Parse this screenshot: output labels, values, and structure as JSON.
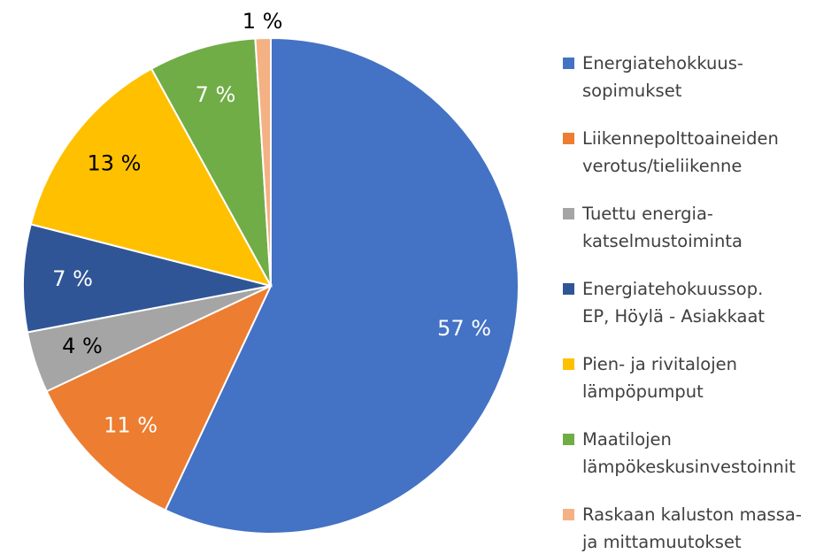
{
  "chart_data": {
    "type": "pie",
    "categories": [
      "Energiatehokkuus-\nsopimukset",
      "Liikennepolttoaineiden\nverotus/tieliikenne",
      "Tuettu energia-\nkatselmustoiminta",
      "Energiatehokuussop.\nEP, Höylä - Asiakkaat",
      "Pien- ja rivitalojen\nlämpöpumput",
      "Maatilojen\nlämpökeskusinvestoinnit",
      "Raskaan kaluston massa-\nja mittamuutokset"
    ],
    "values": [
      57,
      11,
      4,
      7,
      13,
      7,
      1
    ],
    "value_labels": [
      "57 %",
      "11 %",
      "4 %",
      "7 %",
      "13 %",
      "7 %",
      "1 %"
    ],
    "colors": [
      "#4472c4",
      "#ed7d31",
      "#a5a5a5",
      "#2f5597",
      "#ffc000",
      "#70ad47",
      "#f4b183"
    ],
    "legend": "right"
  }
}
